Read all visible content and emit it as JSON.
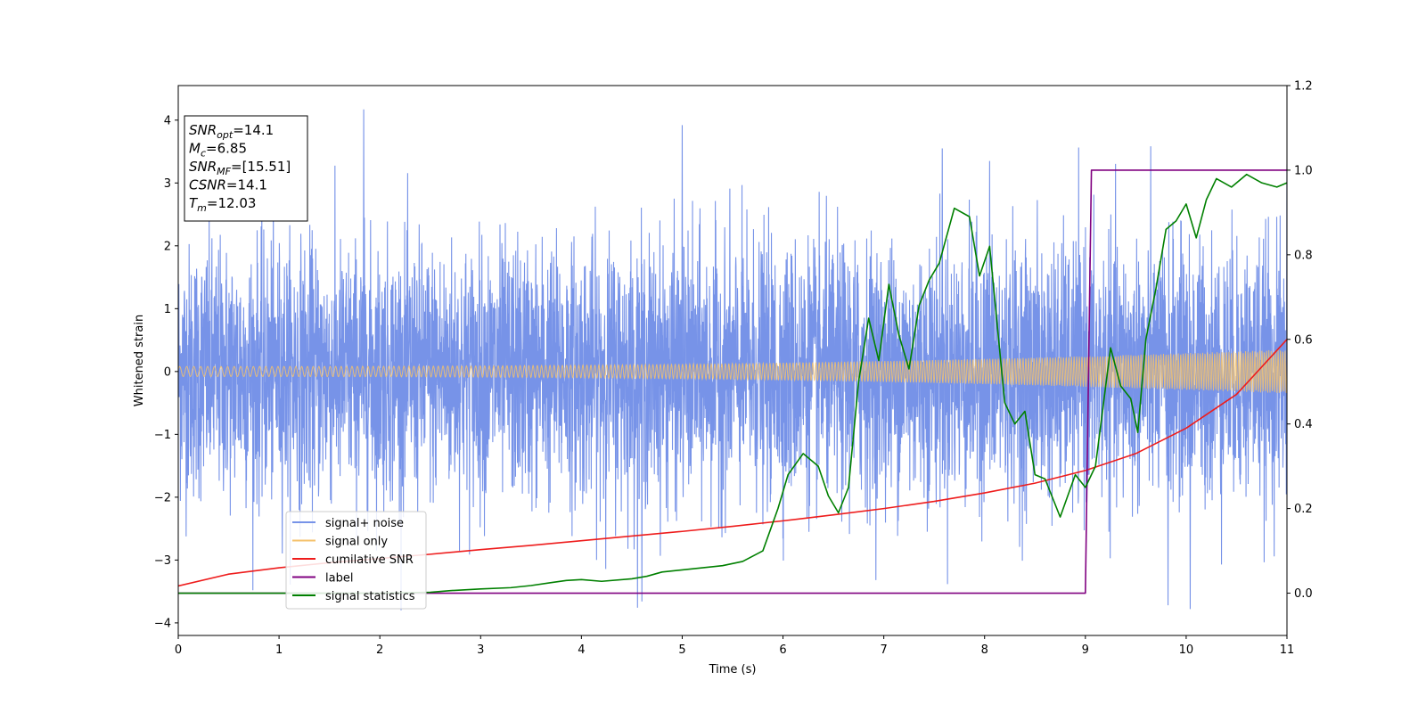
{
  "chart_data": {
    "type": "line",
    "xlabel": "Time (s)",
    "ylabel": "Whitened strain",
    "xlim": [
      0,
      11
    ],
    "ylim_left": [
      -4.2,
      4.55
    ],
    "ylim_right": [
      -0.1,
      1.2
    ],
    "x_ticks": [
      0,
      1,
      2,
      3,
      4,
      5,
      6,
      7,
      8,
      9,
      10,
      11
    ],
    "y_ticks_left": [
      -4,
      -3,
      -2,
      -1,
      0,
      1,
      2,
      3,
      4
    ],
    "y_ticks_right": [
      0.0,
      0.2,
      0.4,
      0.6,
      0.8,
      1.0,
      1.2
    ],
    "legend_position": "lower-left",
    "info_box": [
      {
        "main": "SNR",
        "sub": "opt",
        "rest": "=14.1"
      },
      {
        "main": "M",
        "sub": "c",
        "rest": "=6.85"
      },
      {
        "main": "SNR",
        "sub": "MF",
        "rest": "=[15.51]"
      },
      {
        "main": "CSNR",
        "sub": "",
        "rest": "=14.1"
      },
      {
        "main": "T",
        "sub": "m",
        "rest": "=12.03"
      }
    ],
    "series": [
      {
        "name": "signal+ noise",
        "color": "#7793e8",
        "axis": "left",
        "kind": "noise",
        "sigma": 1.0,
        "range_min": -3.8,
        "range_max": 4.2,
        "annotated_peaks": [
          [
            1.84,
            4.17
          ],
          [
            5.0,
            3.92
          ],
          [
            7.58,
            3.55
          ],
          [
            8.05,
            3.35
          ],
          [
            4.6,
            -3.66
          ],
          [
            10.04,
            -3.78
          ],
          [
            9.82,
            -3.72
          ],
          [
            11.0,
            3.3
          ]
        ]
      },
      {
        "name": "signal only",
        "color": "#f5c26b",
        "axis": "left",
        "kind": "chirp",
        "amp_start": 0.08,
        "amp_end": 0.35
      },
      {
        "name": "cumilative SNR",
        "color": "#ee1c1c",
        "axis": "right",
        "x": [
          0,
          0.5,
          1,
          1.5,
          2,
          2.5,
          3,
          3.5,
          4,
          4.5,
          5,
          5.5,
          6,
          6.5,
          7,
          7.5,
          8,
          8.5,
          9,
          9.5,
          10,
          10.5,
          11
        ],
        "y": [
          0.017,
          0.045,
          0.06,
          0.072,
          0.082,
          0.092,
          0.103,
          0.113,
          0.124,
          0.135,
          0.146,
          0.158,
          0.171,
          0.185,
          0.2,
          0.217,
          0.237,
          0.26,
          0.29,
          0.33,
          0.39,
          0.47,
          0.6
        ]
      },
      {
        "name": "label",
        "color": "#800080",
        "axis": "right",
        "x": [
          0,
          9.0,
          9.06,
          11.0
        ],
        "y": [
          0.0,
          0.0,
          1.0,
          1.0
        ]
      },
      {
        "name": "signal statistics",
        "color": "#008000",
        "axis": "right",
        "x": [
          0,
          0.5,
          1,
          1.5,
          2,
          2.5,
          2.7,
          3,
          3.3,
          3.5,
          3.7,
          3.85,
          4,
          4.2,
          4.5,
          4.65,
          4.8,
          5.0,
          5.2,
          5.4,
          5.6,
          5.8,
          5.95,
          6.05,
          6.2,
          6.35,
          6.45,
          6.55,
          6.65,
          6.75,
          6.85,
          6.95,
          7.05,
          7.15,
          7.25,
          7.35,
          7.45,
          7.55,
          7.7,
          7.85,
          7.95,
          8.05,
          8.2,
          8.3,
          8.4,
          8.5,
          8.6,
          8.75,
          8.9,
          9.0,
          9.1,
          9.25,
          9.35,
          9.45,
          9.52,
          9.6,
          9.7,
          9.8,
          9.9,
          10.0,
          10.1,
          10.2,
          10.3,
          10.45,
          10.6,
          10.75,
          10.9,
          11.0
        ],
        "y": [
          0.0,
          0.0,
          0.0,
          0.0,
          0.0,
          0.002,
          0.006,
          0.01,
          0.013,
          0.018,
          0.025,
          0.03,
          0.032,
          0.028,
          0.034,
          0.04,
          0.05,
          0.055,
          0.06,
          0.065,
          0.075,
          0.1,
          0.2,
          0.28,
          0.33,
          0.3,
          0.23,
          0.19,
          0.25,
          0.5,
          0.65,
          0.55,
          0.73,
          0.61,
          0.53,
          0.68,
          0.74,
          0.78,
          0.91,
          0.89,
          0.75,
          0.82,
          0.45,
          0.4,
          0.43,
          0.28,
          0.27,
          0.18,
          0.28,
          0.25,
          0.3,
          0.58,
          0.49,
          0.46,
          0.38,
          0.6,
          0.72,
          0.86,
          0.88,
          0.92,
          0.84,
          0.93,
          0.98,
          0.96,
          0.99,
          0.97,
          0.96,
          0.97
        ]
      }
    ]
  }
}
